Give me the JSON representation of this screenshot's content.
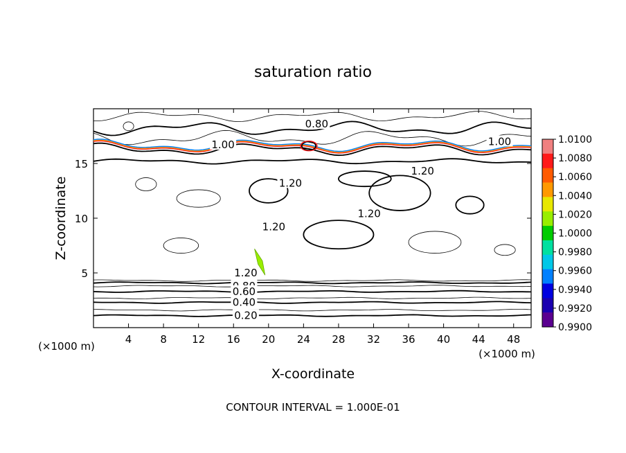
{
  "chart_data": {
    "type": "contour",
    "title": "saturation ratio",
    "xlabel": "X-coordinate",
    "ylabel": "Z-coordinate",
    "x_unit_label": "(×1000 m)",
    "y_unit_label": "(×1000 m)",
    "xlim": [
      0,
      50
    ],
    "ylim": [
      0,
      20
    ],
    "x_ticks": [
      4,
      8,
      12,
      16,
      20,
      24,
      28,
      32,
      36,
      40,
      44,
      48
    ],
    "y_ticks": [
      5,
      10,
      15
    ],
    "contour_interval_label": "CONTOUR INTERVAL = 1.000E-01",
    "contour_labels": [
      {
        "text": "0.80",
        "x": 25.5,
        "z": 18.6
      },
      {
        "text": "1.00",
        "x": 14.8,
        "z": 16.7
      },
      {
        "text": "1.00",
        "x": 46.4,
        "z": 17.0
      },
      {
        "text": "1.20",
        "x": 37.6,
        "z": 14.3
      },
      {
        "text": "1.20",
        "x": 22.5,
        "z": 13.2
      },
      {
        "text": "1.20",
        "x": 31.5,
        "z": 10.4
      },
      {
        "text": "1.20",
        "x": 20.6,
        "z": 9.2
      },
      {
        "text": "1.20",
        "x": 17.4,
        "z": 5.0
      },
      {
        "text": "0.80",
        "x": 17.2,
        "z": 3.8
      },
      {
        "text": "0.60",
        "x": 17.2,
        "z": 3.3
      },
      {
        "text": "0.40",
        "x": 17.2,
        "z": 2.3
      },
      {
        "text": "0.20",
        "x": 17.4,
        "z": 1.1
      }
    ],
    "colorbar": {
      "labels": [
        "1.0100",
        "1.0080",
        "1.0060",
        "1.0040",
        "1.0020",
        "1.0000",
        "0.9980",
        "0.9960",
        "0.9940",
        "0.9920",
        "0.9900"
      ],
      "colors": [
        "#f08080",
        "#ff1a1a",
        "#ff5a00",
        "#ff9900",
        "#e8e800",
        "#99ee00",
        "#00cc00",
        "#00e0a0",
        "#00c8e8",
        "#0080ff",
        "#0000e0",
        "#1a00b0",
        "#5a0090"
      ]
    }
  }
}
